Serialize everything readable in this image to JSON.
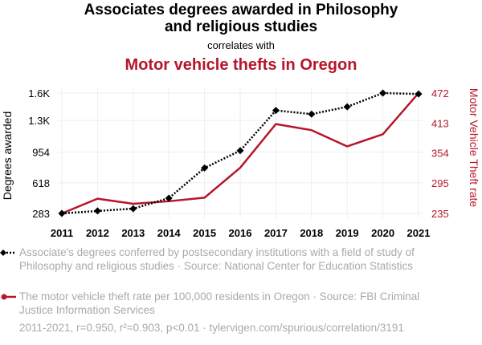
{
  "title_line1": "Associates degrees awarded in Philosophy",
  "title_line2": "and religious studies",
  "correlates_with": "correlates with",
  "title2": "Motor vehicle thefts in Oregon",
  "colors": {
    "series1": "#000000",
    "series2": "#b5162b",
    "grid": "#eeeeee",
    "muted": "#aaaaaa"
  },
  "chart_data": {
    "type": "line",
    "x": [
      2011,
      2012,
      2013,
      2014,
      2015,
      2016,
      2017,
      2018,
      2019,
      2020,
      2021
    ],
    "xlabels": [
      "2011",
      "2012",
      "2013",
      "2014",
      "2015",
      "2016",
      "2017",
      "2018",
      "2019",
      "2020",
      "2021"
    ],
    "left_axis": {
      "label": "Degrees awarded",
      "range": [
        283,
        1600
      ],
      "ticks": [
        283,
        618,
        954,
        1300,
        1600
      ],
      "tick_labels": [
        "283",
        "618",
        "954",
        "1.3K",
        "1.6K"
      ]
    },
    "right_axis": {
      "label": "Motor Vehicle Theft rate",
      "range": [
        235,
        472
      ],
      "ticks": [
        235,
        295,
        354,
        413,
        472
      ],
      "tick_labels": [
        "235",
        "295",
        "354",
        "413",
        "472"
      ]
    },
    "series": [
      {
        "name": "Associate's degrees conferred by postsecondary institutions with a field of study of Philosophy and religious studies · Source: National Center for Education Statistics",
        "axis": "left",
        "style": "dotted",
        "marker": "diamond",
        "values": [
          283,
          310,
          335,
          450,
          780,
          970,
          1410,
          1370,
          1450,
          1600,
          1590
        ]
      },
      {
        "name": "The motor vehicle theft rate per 100,000 residents in Oregon · Source: FBI Criminal Justice Information Services",
        "axis": "right",
        "style": "solid",
        "marker": "circle",
        "values": [
          235,
          264,
          254,
          259,
          266,
          325,
          411,
          399,
          367,
          391,
          472
        ]
      }
    ]
  },
  "footer": "2011-2021, r=0.950, r²=0.903, p<0.01 · tylervigen.com/spurious/correlation/3191"
}
